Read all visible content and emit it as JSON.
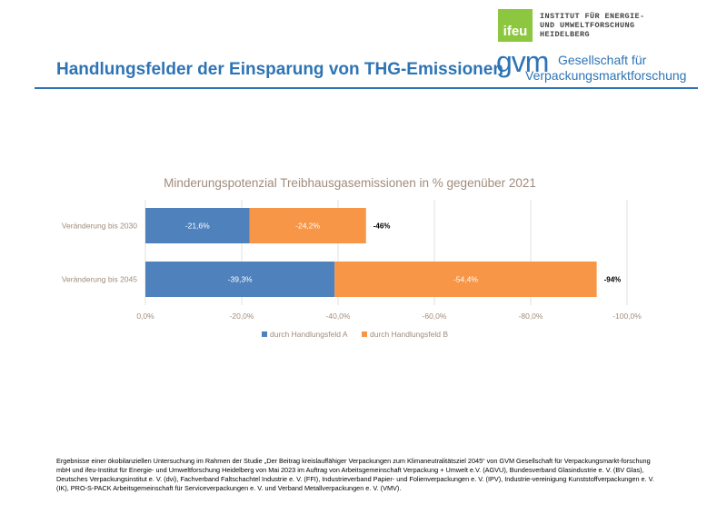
{
  "slide": {
    "title": "Handlungsfelder der Einsparung von THG-Emissionen",
    "title_color": "#2e74b5"
  },
  "logos": {
    "ifeu": {
      "mark": "ifeu",
      "line1": "INSTITUT FÜR ENERGIE-",
      "line2": "UND UMWELTFORSCHUNG",
      "line3": "HEIDELBERG",
      "color": "#8dc63f"
    },
    "gvm": {
      "mark": "gvm",
      "line1": "Gesellschaft für",
      "line2": "Verpackungsmarktforschung",
      "color": "#2e74b5"
    }
  },
  "chart_data": {
    "type": "bar",
    "orientation": "horizontal",
    "stacked": true,
    "title": "Minderungspotenzial Treibhausgasemissionen  in % gegenüber 2021",
    "categories": [
      "Veränderung bis 2030",
      "Veränderung bis 2045"
    ],
    "series": [
      {
        "name": "durch Handlungsfeld A",
        "values": [
          -21.6,
          -39.3
        ],
        "labels": [
          "-21,6%",
          "-39,3%"
        ],
        "color": "#4f81bd"
      },
      {
        "name": "durch Handlungsfeld B",
        "values": [
          -24.2,
          -54.4
        ],
        "labels": [
          "-24,2%",
          "-54,4%"
        ],
        "color": "#f79646"
      }
    ],
    "totals": [
      "-46%",
      "-94%"
    ],
    "xlim": [
      0,
      -100
    ],
    "xticks": [
      0,
      -20,
      -40,
      -60,
      -80,
      -100
    ],
    "xtick_labels": [
      "0,0%",
      "-20,0%",
      "-40,0%",
      "-60,0%",
      "-80,0%",
      "-100,0%"
    ],
    "grid": true,
    "legend": "bottom"
  },
  "footnote": "Ergebnisse einer ökobilanziellen Untersuchung im Rahmen der Studie „Der Beitrag kreislauffähiger Verpackungen zum Klimaneutralitätsziel 2045“ von GVM Gesellschaft für Verpackungsmarkt-forschung mbH und ifeu-Institut für Energie- und Umweltforschung Heidelberg von Mai 2023 im Auftrag von Arbeitsgemeinschaft Verpackung + Umwelt e.V. (AGVU), Bundesverband Glasindustrie e. V. (BV Glas), Deutsches Verpackungsinstitut e. V. (dvi), Fachverband Faltschachtel Industrie e. V. (FFI), Industrieverband Papier- und Folienverpackungen e. V. (IPV), Industrie-vereinigung Kunststoffverpackungen e. V. (IK), PRO-S-PACK Arbeitsgemeinschaft für Serviceverpackungen e. V. und Verband Metallverpackungen e. V. (VMV)."
}
